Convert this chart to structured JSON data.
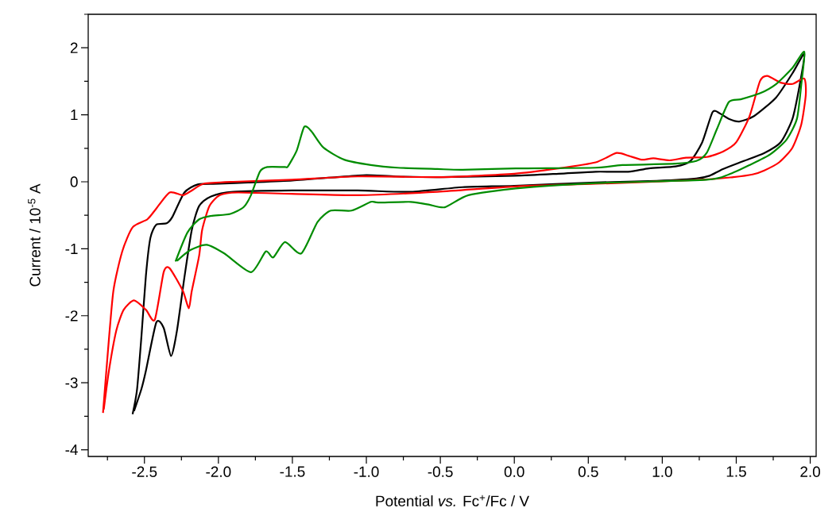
{
  "chart_data": {
    "type": "line",
    "xlabel": "Potential *vs.* Fc$^{+}$/Fc  /  V",
    "ylabel": "Current  /  10$^{-5}$ A",
    "xlim": [
      -2.88,
      2.04
    ],
    "ylim": [
      -4.1,
      2.5
    ],
    "xticks": [
      {
        "value": -2.75,
        "label": null
      },
      {
        "value": -2.5,
        "label": "-2.5"
      },
      {
        "value": -2.25,
        "label": null
      },
      {
        "value": -2.0,
        "label": "-2.0"
      },
      {
        "value": -1.75,
        "label": null
      },
      {
        "value": -1.5,
        "label": "-1.5"
      },
      {
        "value": -1.25,
        "label": null
      },
      {
        "value": -1.0,
        "label": "-1.0"
      },
      {
        "value": -0.75,
        "label": null
      },
      {
        "value": -0.5,
        "label": "-0.5"
      },
      {
        "value": -0.25,
        "label": null
      },
      {
        "value": 0,
        "label": "0.0"
      },
      {
        "value": 0.25,
        "label": null
      },
      {
        "value": 0.5,
        "label": "0.5"
      },
      {
        "value": 0.75,
        "label": null
      },
      {
        "value": 1.0,
        "label": "1.0"
      },
      {
        "value": 1.25,
        "label": null
      },
      {
        "value": 1.5,
        "label": "1.5"
      },
      {
        "value": 1.75,
        "label": null
      },
      {
        "value": 2.0,
        "label": "2.0"
      }
    ],
    "yticks": [
      -4,
      {
        "value": -3.5,
        "label": null
      },
      -3,
      {
        "value": -2.5,
        "label": null
      },
      -2,
      {
        "value": -1.5,
        "label": null
      },
      -1,
      {
        "value": -0.5,
        "label": null
      },
      0,
      {
        "value": 0.5,
        "label": null
      },
      1,
      {
        "value": 1.5,
        "label": null
      },
      2,
      {
        "value": 2.5,
        "label": null
      }
    ],
    "series": [
      {
        "color": "#000000",
        "x": [
          -2.58,
          -2.55,
          -2.52,
          -2.49,
          -2.46,
          -2.42,
          -2.35,
          -2.31,
          -2.23,
          -2.14,
          -2.0,
          -1.8,
          -1.5,
          -1.2,
          -1.0,
          -0.8,
          -0.5,
          0.0,
          0.3,
          0.55,
          0.77,
          0.91,
          1.09,
          1.19,
          1.27,
          1.34,
          1.39,
          1.45,
          1.52,
          1.62,
          1.77,
          1.88,
          1.96,
          1.93,
          1.88,
          1.8,
          1.69,
          1.55,
          1.41,
          1.32,
          1.23,
          0.91,
          0.55,
          0.0,
          -0.35,
          -0.7,
          -1.06,
          -1.5,
          -1.9,
          -2.05,
          -2.13,
          -2.18,
          -2.23,
          -2.28,
          -2.32,
          -2.37,
          -2.42,
          -2.49,
          -2.52,
          -2.57
        ],
        "values": [
          -3.47,
          -3.1,
          -2.3,
          -1.4,
          -0.84,
          -0.64,
          -0.62,
          -0.52,
          -0.16,
          -0.04,
          -0.03,
          -0.01,
          0.02,
          0.07,
          0.1,
          0.08,
          0.07,
          0.09,
          0.12,
          0.15,
          0.15,
          0.2,
          0.23,
          0.31,
          0.59,
          1.04,
          1.02,
          0.94,
          0.9,
          0.98,
          1.26,
          1.62,
          1.91,
          1.46,
          0.94,
          0.59,
          0.43,
          0.31,
          0.19,
          0.09,
          0.05,
          0.01,
          -0.01,
          -0.06,
          -0.08,
          -0.15,
          -0.13,
          -0.13,
          -0.15,
          -0.22,
          -0.36,
          -0.72,
          -1.43,
          -2.22,
          -2.6,
          -2.18,
          -2.1,
          -2.82,
          -3.09,
          -3.42
        ]
      },
      {
        "color": "#ff0000",
        "x": [
          -2.78,
          -2.75,
          -2.71,
          -2.65,
          -2.58,
          -2.48,
          -2.42,
          -2.33,
          -2.24,
          -2.18,
          -2.1,
          -1.9,
          -1.5,
          -1.06,
          -0.5,
          0.0,
          0.3,
          0.55,
          0.69,
          0.77,
          0.86,
          0.94,
          1.05,
          1.16,
          1.3,
          1.41,
          1.5,
          1.59,
          1.66,
          1.71,
          1.8,
          1.88,
          1.96,
          1.97,
          1.94,
          1.88,
          1.79,
          1.69,
          1.61,
          1.48,
          1.27,
          0.55,
          0.01,
          -0.52,
          -1.06,
          -1.51,
          -1.87,
          -1.99,
          -2.06,
          -2.11,
          -2.13,
          -2.18,
          -2.2,
          -2.24,
          -2.33,
          -2.37,
          -2.43,
          -2.49,
          -2.57,
          -2.64,
          -2.69,
          -2.74,
          -2.775
        ],
        "values": [
          -3.45,
          -2.62,
          -1.63,
          -1.04,
          -0.68,
          -0.56,
          -0.4,
          -0.16,
          -0.2,
          -0.13,
          -0.03,
          0.0,
          0.03,
          0.08,
          0.07,
          0.12,
          0.2,
          0.29,
          0.43,
          0.39,
          0.33,
          0.35,
          0.32,
          0.36,
          0.37,
          0.45,
          0.59,
          0.98,
          1.5,
          1.58,
          1.48,
          1.46,
          1.54,
          1.3,
          0.86,
          0.51,
          0.29,
          0.17,
          0.11,
          0.07,
          0.03,
          -0.03,
          -0.07,
          -0.15,
          -0.2,
          -0.18,
          -0.16,
          -0.2,
          -0.36,
          -0.72,
          -1.1,
          -1.63,
          -1.89,
          -1.63,
          -1.29,
          -1.35,
          -2.06,
          -1.91,
          -1.77,
          -1.91,
          -2.22,
          -2.82,
          -3.4
        ]
      },
      {
        "color": "#008c00",
        "x": [
          -2.29,
          -2.21,
          -2.13,
          -2.05,
          -1.92,
          -1.83,
          -1.78,
          -1.72,
          -1.67,
          -1.55,
          -1.53,
          -1.47,
          -1.42,
          -1.37,
          -1.29,
          -1.15,
          -0.97,
          -0.79,
          -0.52,
          -0.35,
          0.01,
          0.55,
          0.73,
          1.09,
          1.23,
          1.3,
          1.37,
          1.45,
          1.53,
          1.66,
          1.77,
          1.88,
          1.96,
          1.94,
          1.91,
          1.84,
          1.73,
          1.59,
          1.45,
          1.3,
          0.55,
          0.01,
          -0.31,
          -0.47,
          -0.58,
          -0.7,
          -0.92,
          -0.97,
          -1.1,
          -1.24,
          -1.33,
          -1.44,
          -1.55,
          -1.63,
          -1.68,
          -1.78,
          -1.96,
          -2.08,
          -2.19,
          -2.28
        ],
        "values": [
          -1.19,
          -0.76,
          -0.56,
          -0.51,
          -0.48,
          -0.38,
          -0.2,
          0.15,
          0.22,
          0.22,
          0.23,
          0.47,
          0.82,
          0.75,
          0.51,
          0.33,
          0.25,
          0.21,
          0.19,
          0.18,
          0.2,
          0.21,
          0.25,
          0.27,
          0.31,
          0.43,
          0.79,
          1.19,
          1.23,
          1.32,
          1.46,
          1.7,
          1.94,
          1.46,
          0.94,
          0.63,
          0.41,
          0.25,
          0.11,
          0.03,
          -0.02,
          -0.1,
          -0.2,
          -0.38,
          -0.34,
          -0.3,
          -0.31,
          -0.3,
          -0.43,
          -0.43,
          -0.6,
          -1.07,
          -0.9,
          -1.13,
          -1.04,
          -1.35,
          -1.07,
          -0.94,
          -1.02,
          -1.18
        ]
      }
    ]
  }
}
